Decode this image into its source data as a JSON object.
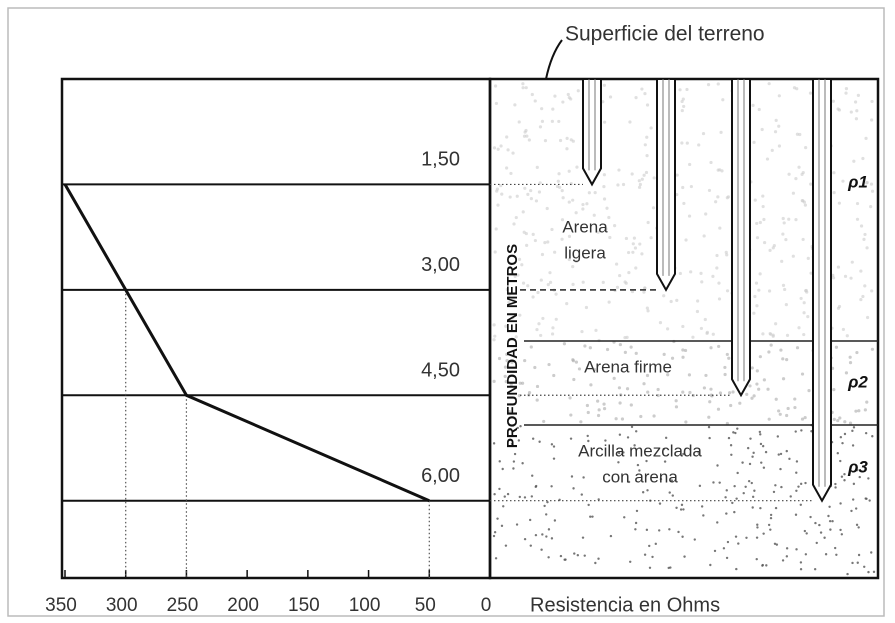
{
  "chart_data": {
    "type": "line",
    "title": "Superficie del terreno",
    "xlabel": "Resistencia en Ohms",
    "ylabel": "PROFUNDIDAD EN METROS",
    "x": [
      350,
      300,
      250,
      50
    ],
    "values": [
      1.5,
      3.0,
      4.5,
      6.0
    ],
    "xlim": [
      350,
      0
    ],
    "xticks": [
      350,
      300,
      250,
      200,
      150,
      100,
      50,
      0
    ],
    "ylim": [
      7.1,
      0
    ],
    "yticks": [
      {
        "value": 1.5,
        "label": "1,50"
      },
      {
        "value": 3.0,
        "label": "3,00"
      },
      {
        "value": 4.5,
        "label": "4,50"
      },
      {
        "value": 6.0,
        "label": "6,00"
      }
    ],
    "color": "#111111",
    "annotations": {
      "soil_labels": [
        [
          "Arena",
          "ligera"
        ],
        [
          "Arena firme"
        ],
        [
          "Arcilla mezclada",
          "con arena"
        ]
      ],
      "resistivity_labels": [
        "ρ1",
        "ρ2",
        "ρ3"
      ]
    }
  }
}
